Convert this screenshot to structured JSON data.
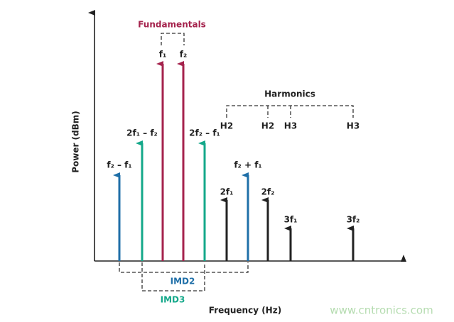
{
  "title": "Fundamentals",
  "fundamentals": [
    "f₁",
    "f₂"
  ],
  "harmonics": {
    "title": "Harmonics",
    "groups": [
      "H2",
      "H2",
      "H3",
      "H3"
    ],
    "labels": [
      "2f₁",
      "2f₂",
      "3f₁",
      "3f₂"
    ]
  },
  "products": [
    "f₂ – f₁",
    "2f₁ – f₂",
    "2f₂ – f₁",
    "f₂ + f₁"
  ],
  "imd": [
    "IMD2",
    "IMD3"
  ],
  "axes": {
    "y": "Power (dBm)",
    "x": "Frequency (Hz)"
  },
  "watermark": "www.cntronics.com"
}
